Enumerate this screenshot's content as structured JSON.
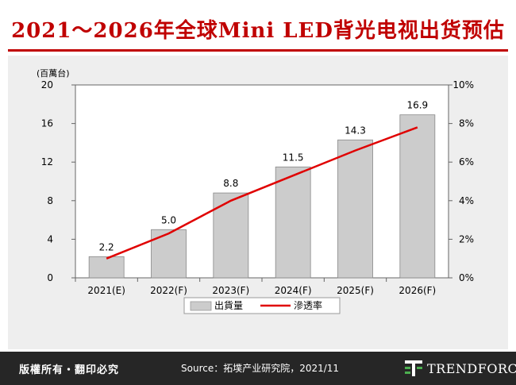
{
  "title": "2021～2026年全球Mini LED背光电视出货预估",
  "footer": {
    "copyright": "版權所有・翻印必究",
    "source": "Source：拓墣产业研究院，2021/11",
    "brand": "TRENDFORCE"
  },
  "chart_data": {
    "type": "bar",
    "categories": [
      "2021(E)",
      "2022(F)",
      "2023(F)",
      "2024(F)",
      "2025(F)",
      "2026(F)"
    ],
    "unit_label": "(百萬台)",
    "y_left": {
      "min": 0,
      "max": 20,
      "ticks": [
        "0",
        "4",
        "8",
        "12",
        "16",
        "20"
      ]
    },
    "y_right": {
      "min": 0,
      "max": 10,
      "ticks": [
        "0%",
        "2%",
        "4%",
        "6%",
        "8%",
        "10%"
      ]
    },
    "series": [
      {
        "name": "出貨量",
        "type": "bar",
        "axis": "left",
        "color": "#cccccc",
        "values": [
          2.2,
          5.0,
          8.8,
          11.5,
          14.3,
          16.9
        ],
        "labels": [
          "2.2",
          "5.0",
          "8.8",
          "11.5",
          "14.3",
          "16.9"
        ]
      },
      {
        "name": "滲透率",
        "type": "line",
        "axis": "right",
        "color": "#e00000",
        "values": [
          1.0,
          2.3,
          4.0,
          5.3,
          6.6,
          7.8
        ]
      }
    ],
    "legend_position": "bottom",
    "grid": false
  }
}
